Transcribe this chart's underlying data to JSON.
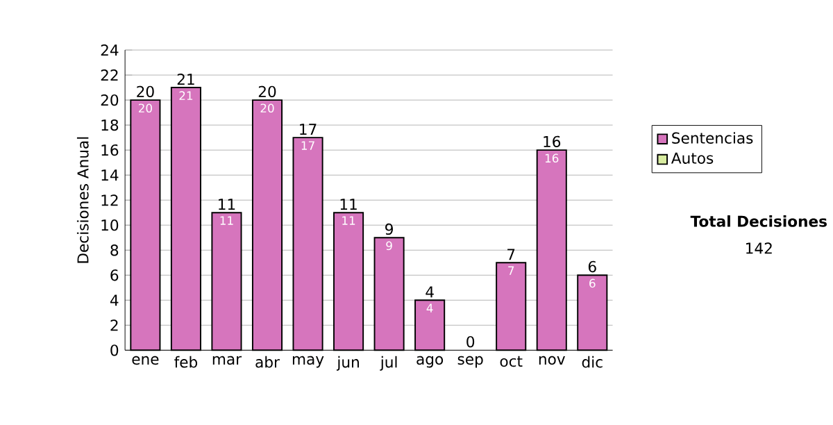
{
  "chart_data": {
    "type": "bar",
    "stacked": true,
    "ylabel": "Decisiones Anual",
    "categories": [
      "ene",
      "feb",
      "mar",
      "abr",
      "may",
      "jun",
      "jul",
      "ago",
      "sep",
      "oct",
      "nov",
      "dic"
    ],
    "series": [
      {
        "name": "Sentencias",
        "color": "#d675bd",
        "values": [
          20,
          21,
          11,
          20,
          17,
          11,
          9,
          4,
          0,
          7,
          16,
          6
        ],
        "value_labels": [
          "20",
          "21",
          "11",
          "20",
          "17",
          "11",
          "9",
          "4",
          null,
          "7",
          "16",
          "6"
        ]
      },
      {
        "name": "Autos",
        "color": "#d8eca0",
        "values": [
          0,
          0,
          0,
          0,
          0,
          0,
          0,
          0,
          0,
          0,
          0,
          0
        ]
      }
    ],
    "totals": [
      "20",
      "21",
      "11",
      "20",
      "17",
      "11",
      "9",
      "4",
      "0",
      "7",
      "16",
      "6"
    ],
    "ylim": [
      0,
      24
    ],
    "yticks": [
      0,
      2,
      4,
      6,
      8,
      10,
      12,
      14,
      16,
      18,
      20,
      22,
      24
    ],
    "grid": "y",
    "legend": "right",
    "annotations": [
      "Total Decisiones",
      "142"
    ]
  }
}
